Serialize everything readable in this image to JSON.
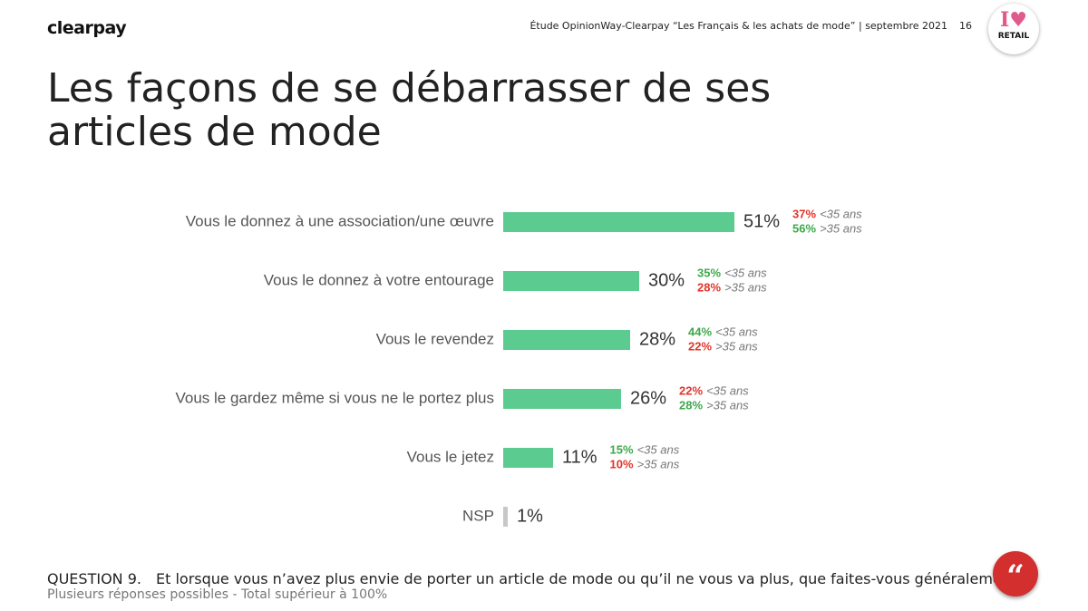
{
  "header": {
    "logo": "clearpay",
    "source": "Étude OpinionWay-Clearpay “Les Français & les achats de mode” | septembre 2021",
    "page": "16",
    "badge_top": "I",
    "badge_bottom": "RETAIL"
  },
  "chart_data": {
    "type": "bar",
    "orientation": "horizontal",
    "title": "Les façons de se débarrasser de ses articles de mode",
    "categories": [
      "Vous le donnez à une association/une œuvre",
      "Vous le donnez à votre entourage",
      "Vous le revendez",
      "Vous le gardez même si vous ne le portez plus",
      "Vous le jetez",
      "NSP"
    ],
    "values": [
      51,
      30,
      28,
      26,
      11,
      1
    ],
    "value_labels": [
      "51%",
      "30%",
      "28%",
      "26%",
      "11%",
      "1%"
    ],
    "colors": [
      "#5ccb8f",
      "#5ccb8f",
      "#5ccb8f",
      "#5ccb8f",
      "#5ccb8f",
      "#c8c8c8"
    ],
    "series": [
      {
        "name": "<35 ans",
        "values": [
          37,
          35,
          44,
          22,
          15,
          null
        ],
        "value_labels": [
          "37%",
          "35%",
          "44%",
          "22%",
          "15%",
          null
        ],
        "colors": [
          "#e2342a",
          "#3ea84a",
          "#3ea84a",
          "#e2342a",
          "#3ea84a",
          null
        ]
      },
      {
        "name": ">35 ans",
        "values": [
          56,
          28,
          22,
          28,
          10,
          null
        ],
        "value_labels": [
          "56%",
          "28%",
          "22%",
          "28%",
          "10%",
          null
        ],
        "colors": [
          "#3ea84a",
          "#e2342a",
          "#e2342a",
          "#3ea84a",
          "#e2342a",
          null
        ]
      }
    ]
  },
  "question": {
    "label": "QUESTION 9.",
    "text": "Et lorsque vous n’avez plus envie de porter un article de mode ou qu’il ne vous va plus, que faites-vous généralement ?",
    "note": "Plusieurs réponses possibles - Total supérieur à 100%"
  }
}
